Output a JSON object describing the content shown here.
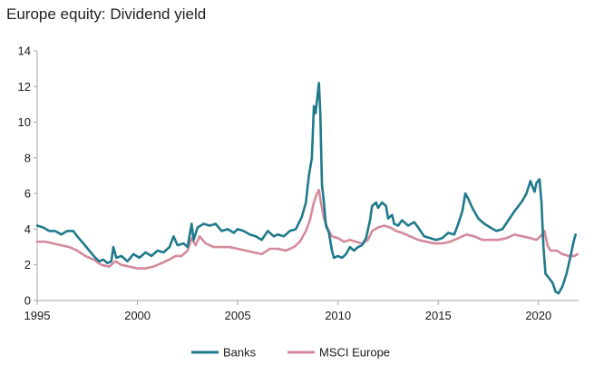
{
  "chart_data": {
    "type": "line",
    "title": "Europe equity: Dividend yield",
    "xlabel": "",
    "ylabel": "",
    "xlim": [
      1995,
      2022
    ],
    "ylim": [
      0,
      14
    ],
    "x_ticks": [
      1995,
      2000,
      2005,
      2010,
      2015,
      2020
    ],
    "y_ticks": [
      0,
      2,
      4,
      6,
      8,
      10,
      12,
      14
    ],
    "grid": false,
    "legend_position": "bottom",
    "series": [
      {
        "name": "Banks",
        "color": "#1f7a8c",
        "points": [
          [
            1995.0,
            4.2
          ],
          [
            1995.3,
            4.1
          ],
          [
            1995.6,
            3.9
          ],
          [
            1995.9,
            3.9
          ],
          [
            1996.2,
            3.7
          ],
          [
            1996.5,
            3.9
          ],
          [
            1996.8,
            3.9
          ],
          [
            1997.0,
            3.6
          ],
          [
            1997.3,
            3.2
          ],
          [
            1997.6,
            2.8
          ],
          [
            1997.9,
            2.4
          ],
          [
            1998.1,
            2.2
          ],
          [
            1998.3,
            2.3
          ],
          [
            1998.5,
            2.1
          ],
          [
            1998.7,
            2.2
          ],
          [
            1998.8,
            3.0
          ],
          [
            1998.95,
            2.4
          ],
          [
            1999.2,
            2.5
          ],
          [
            1999.5,
            2.2
          ],
          [
            1999.8,
            2.6
          ],
          [
            2000.1,
            2.4
          ],
          [
            2000.4,
            2.7
          ],
          [
            2000.7,
            2.5
          ],
          [
            2001.0,
            2.8
          ],
          [
            2001.3,
            2.7
          ],
          [
            2001.6,
            3.0
          ],
          [
            2001.8,
            3.6
          ],
          [
            2002.0,
            3.1
          ],
          [
            2002.3,
            3.2
          ],
          [
            2002.5,
            3.0
          ],
          [
            2002.7,
            4.3
          ],
          [
            2002.8,
            3.4
          ],
          [
            2003.0,
            4.1
          ],
          [
            2003.3,
            4.3
          ],
          [
            2003.6,
            4.2
          ],
          [
            2003.9,
            4.3
          ],
          [
            2004.2,
            3.9
          ],
          [
            2004.5,
            4.0
          ],
          [
            2004.8,
            3.8
          ],
          [
            2005.0,
            4.0
          ],
          [
            2005.3,
            3.9
          ],
          [
            2005.6,
            3.7
          ],
          [
            2005.9,
            3.6
          ],
          [
            2006.2,
            3.4
          ],
          [
            2006.5,
            3.9
          ],
          [
            2006.8,
            3.6
          ],
          [
            2007.0,
            3.7
          ],
          [
            2007.3,
            3.6
          ],
          [
            2007.6,
            3.9
          ],
          [
            2007.9,
            4.0
          ],
          [
            2008.2,
            4.7
          ],
          [
            2008.4,
            5.5
          ],
          [
            2008.55,
            7.0
          ],
          [
            2008.7,
            8.0
          ],
          [
            2008.8,
            10.9
          ],
          [
            2008.88,
            10.5
          ],
          [
            2008.95,
            11.2
          ],
          [
            2009.05,
            12.2
          ],
          [
            2009.12,
            10.5
          ],
          [
            2009.2,
            6.5
          ],
          [
            2009.3,
            5.5
          ],
          [
            2009.4,
            4.2
          ],
          [
            2009.55,
            3.8
          ],
          [
            2009.7,
            2.8
          ],
          [
            2009.8,
            2.4
          ],
          [
            2010.0,
            2.5
          ],
          [
            2010.2,
            2.4
          ],
          [
            2010.4,
            2.6
          ],
          [
            2010.6,
            3.0
          ],
          [
            2010.8,
            2.8
          ],
          [
            2011.0,
            3.0
          ],
          [
            2011.2,
            3.1
          ],
          [
            2011.4,
            3.5
          ],
          [
            2011.6,
            4.5
          ],
          [
            2011.7,
            5.3
          ],
          [
            2011.9,
            5.5
          ],
          [
            2012.0,
            5.2
          ],
          [
            2012.2,
            5.5
          ],
          [
            2012.4,
            5.3
          ],
          [
            2012.5,
            4.6
          ],
          [
            2012.7,
            4.8
          ],
          [
            2012.8,
            4.3
          ],
          [
            2013.0,
            4.2
          ],
          [
            2013.2,
            4.5
          ],
          [
            2013.5,
            4.2
          ],
          [
            2013.8,
            4.4
          ],
          [
            2014.0,
            4.1
          ],
          [
            2014.3,
            3.6
          ],
          [
            2014.6,
            3.5
          ],
          [
            2014.9,
            3.4
          ],
          [
            2015.2,
            3.5
          ],
          [
            2015.5,
            3.8
          ],
          [
            2015.8,
            3.7
          ],
          [
            2016.0,
            4.3
          ],
          [
            2016.2,
            5.0
          ],
          [
            2016.35,
            6.0
          ],
          [
            2016.5,
            5.7
          ],
          [
            2016.7,
            5.2
          ],
          [
            2017.0,
            4.6
          ],
          [
            2017.3,
            4.3
          ],
          [
            2017.6,
            4.1
          ],
          [
            2017.9,
            3.9
          ],
          [
            2018.2,
            4.0
          ],
          [
            2018.5,
            4.5
          ],
          [
            2018.8,
            5.0
          ],
          [
            2019.0,
            5.3
          ],
          [
            2019.2,
            5.6
          ],
          [
            2019.4,
            6.0
          ],
          [
            2019.6,
            6.7
          ],
          [
            2019.7,
            6.4
          ],
          [
            2019.8,
            6.1
          ],
          [
            2019.9,
            6.6
          ],
          [
            2020.05,
            6.8
          ],
          [
            2020.15,
            5.5
          ],
          [
            2020.25,
            3.0
          ],
          [
            2020.35,
            1.5
          ],
          [
            2020.5,
            1.3
          ],
          [
            2020.7,
            1.0
          ],
          [
            2020.85,
            0.5
          ],
          [
            2021.0,
            0.4
          ],
          [
            2021.2,
            0.8
          ],
          [
            2021.4,
            1.5
          ],
          [
            2021.6,
            2.5
          ],
          [
            2021.75,
            3.3
          ],
          [
            2021.85,
            3.7
          ]
        ]
      },
      {
        "name": "MSCI Europe",
        "color": "#d48a9a",
        "points": [
          [
            1995.0,
            3.3
          ],
          [
            1995.4,
            3.3
          ],
          [
            1995.8,
            3.2
          ],
          [
            1996.2,
            3.1
          ],
          [
            1996.6,
            3.0
          ],
          [
            1997.0,
            2.8
          ],
          [
            1997.4,
            2.5
          ],
          [
            1997.8,
            2.3
          ],
          [
            1998.2,
            2.0
          ],
          [
            1998.6,
            1.9
          ],
          [
            1998.9,
            2.2
          ],
          [
            1999.2,
            2.0
          ],
          [
            1999.6,
            1.9
          ],
          [
            2000.0,
            1.8
          ],
          [
            2000.4,
            1.8
          ],
          [
            2000.8,
            1.9
          ],
          [
            2001.2,
            2.1
          ],
          [
            2001.6,
            2.3
          ],
          [
            2001.9,
            2.5
          ],
          [
            2002.2,
            2.5
          ],
          [
            2002.5,
            2.8
          ],
          [
            2002.7,
            3.5
          ],
          [
            2002.9,
            3.1
          ],
          [
            2003.1,
            3.6
          ],
          [
            2003.4,
            3.2
          ],
          [
            2003.8,
            3.0
          ],
          [
            2004.2,
            3.0
          ],
          [
            2004.6,
            3.0
          ],
          [
            2005.0,
            2.9
          ],
          [
            2005.4,
            2.8
          ],
          [
            2005.8,
            2.7
          ],
          [
            2006.2,
            2.6
          ],
          [
            2006.6,
            2.9
          ],
          [
            2007.0,
            2.9
          ],
          [
            2007.4,
            2.8
          ],
          [
            2007.8,
            3.0
          ],
          [
            2008.1,
            3.3
          ],
          [
            2008.4,
            3.9
          ],
          [
            2008.6,
            4.5
          ],
          [
            2008.8,
            5.5
          ],
          [
            2008.95,
            6.0
          ],
          [
            2009.05,
            6.2
          ],
          [
            2009.15,
            5.5
          ],
          [
            2009.3,
            4.6
          ],
          [
            2009.5,
            4.0
          ],
          [
            2009.7,
            3.6
          ],
          [
            2010.0,
            3.5
          ],
          [
            2010.3,
            3.3
          ],
          [
            2010.6,
            3.4
          ],
          [
            2010.9,
            3.3
          ],
          [
            2011.2,
            3.2
          ],
          [
            2011.5,
            3.4
          ],
          [
            2011.7,
            3.9
          ],
          [
            2012.0,
            4.1
          ],
          [
            2012.3,
            4.2
          ],
          [
            2012.6,
            4.1
          ],
          [
            2012.9,
            3.9
          ],
          [
            2013.2,
            3.8
          ],
          [
            2013.6,
            3.6
          ],
          [
            2014.0,
            3.4
          ],
          [
            2014.4,
            3.3
          ],
          [
            2014.8,
            3.2
          ],
          [
            2015.2,
            3.2
          ],
          [
            2015.6,
            3.3
          ],
          [
            2016.0,
            3.5
          ],
          [
            2016.4,
            3.7
          ],
          [
            2016.8,
            3.6
          ],
          [
            2017.2,
            3.4
          ],
          [
            2017.6,
            3.4
          ],
          [
            2018.0,
            3.4
          ],
          [
            2018.4,
            3.5
          ],
          [
            2018.8,
            3.7
          ],
          [
            2019.2,
            3.6
          ],
          [
            2019.6,
            3.5
          ],
          [
            2019.9,
            3.4
          ],
          [
            2020.1,
            3.6
          ],
          [
            2020.3,
            3.9
          ],
          [
            2020.45,
            3.1
          ],
          [
            2020.6,
            2.8
          ],
          [
            2020.9,
            2.8
          ],
          [
            2021.2,
            2.6
          ],
          [
            2021.5,
            2.5
          ],
          [
            2021.8,
            2.5
          ],
          [
            2021.95,
            2.6
          ]
        ]
      }
    ]
  }
}
